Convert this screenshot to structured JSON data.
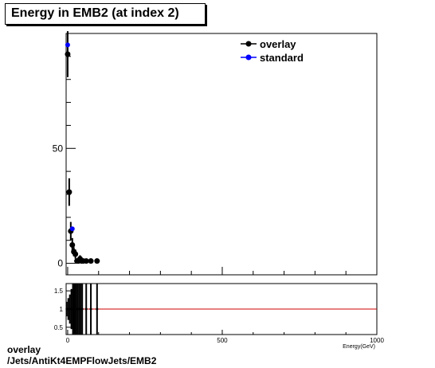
{
  "title": "Energy in EMB2 (at index 2)",
  "footer": {
    "line1": "overlay",
    "line2": "/Jets/AntiKt4EMPFlowJets/EMB2"
  },
  "colors": {
    "overlay": "#000000",
    "standard": "#0000ff",
    "ratio_line": "#cc0000"
  },
  "chart_data": {
    "type": "scatter",
    "title": "Energy in EMB2 (at index 2)",
    "xlabel": "Energy(GeV)",
    "ylabel": "",
    "xlim": [
      -5,
      1000
    ],
    "ylim": [
      -5,
      100
    ],
    "x_ticks": [
      "0",
      "500",
      "1000"
    ],
    "y_ticks": [
      "0",
      "50"
    ],
    "legend_position": "top-right",
    "grid": false,
    "series": [
      {
        "name": "overlay",
        "color": "#000000",
        "x": [
          0,
          5,
          10,
          15,
          20,
          25,
          30,
          35,
          40,
          45,
          50,
          60,
          75,
          95
        ],
        "y": [
          91,
          31,
          14,
          8,
          5,
          4,
          1,
          1,
          2,
          1,
          1,
          1,
          1,
          1
        ],
        "err": [
          10,
          6,
          4,
          3,
          2,
          2,
          1,
          1,
          1.5,
          1,
          1,
          1,
          1,
          1
        ]
      },
      {
        "name": "standard",
        "color": "#0000ff",
        "x": [
          0,
          15
        ],
        "y": [
          95,
          15
        ]
      }
    ],
    "ratio": {
      "ylim": [
        0.3,
        1.7
      ],
      "y_ticks": [
        "0.5",
        "1",
        "1.5"
      ],
      "reference": 1,
      "x": [
        -3,
        2,
        7,
        12,
        17,
        22,
        27,
        32,
        37,
        42,
        47,
        60,
        75,
        95
      ],
      "y": [
        1,
        1,
        1,
        1,
        1,
        1,
        1,
        1,
        1,
        1,
        1,
        1,
        1,
        1
      ],
      "err": [
        0.2,
        0.3,
        0.4,
        0.55,
        0.7,
        0.8,
        0.9,
        1,
        1,
        1,
        1,
        1,
        1,
        1
      ]
    }
  }
}
